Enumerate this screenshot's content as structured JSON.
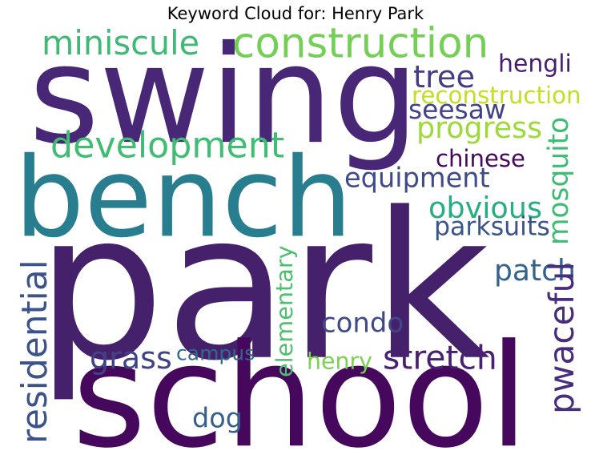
{
  "title": "Keyword Cloud for: Henry Park",
  "words": [
    {
      "text": "park",
      "color": "#46216b"
    },
    {
      "text": "swing",
      "color": "#482777"
    },
    {
      "text": "school",
      "color": "#46085c"
    },
    {
      "text": "bench",
      "color": "#287e8e"
    },
    {
      "text": "construction",
      "color": "#74d055"
    },
    {
      "text": "development",
      "color": "#40bd72"
    },
    {
      "text": "miniscule",
      "color": "#3eba76"
    },
    {
      "text": "tree",
      "color": "#433d84"
    },
    {
      "text": "hengli",
      "color": "#471e6f"
    },
    {
      "text": "reconstruction",
      "color": "#c2df23"
    },
    {
      "text": "seesaw",
      "color": "#414287"
    },
    {
      "text": "progress",
      "color": "#9dd93b"
    },
    {
      "text": "mosquito",
      "color": "#3fbc73"
    },
    {
      "text": "chinese",
      "color": "#46085c"
    },
    {
      "text": "equipment",
      "color": "#3e4a89"
    },
    {
      "text": "obvious",
      "color": "#26ad81"
    },
    {
      "text": "parksuits",
      "color": "#3a548c"
    },
    {
      "text": "patch",
      "color": "#33628d"
    },
    {
      "text": "pwaceful",
      "color": "#472d7b"
    },
    {
      "text": "residential",
      "color": "#3b528b"
    },
    {
      "text": "elementary",
      "color": "#4ac16d"
    },
    {
      "text": "condo",
      "color": "#3f4889"
    },
    {
      "text": "grass",
      "color": "#404387"
    },
    {
      "text": "campus",
      "color": "#31688e"
    },
    {
      "text": "henry",
      "color": "#7ad151"
    },
    {
      "text": "stretch",
      "color": "#482173"
    },
    {
      "text": "dog",
      "color": "#355f8d"
    }
  ]
}
